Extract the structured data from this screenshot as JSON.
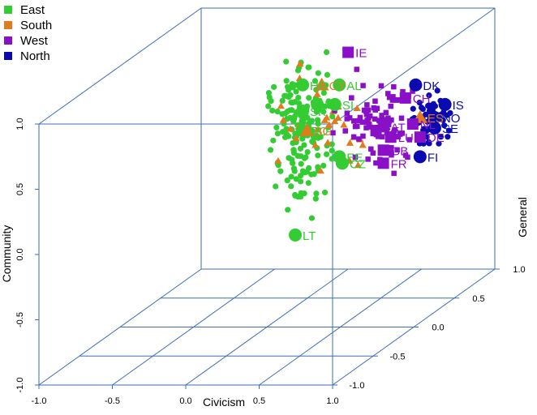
{
  "chart_data": {
    "type": "scatter3d",
    "title": "",
    "axes": {
      "x": {
        "label": "Civicism",
        "range": [
          -1.0,
          1.0
        ],
        "ticks": [
          "-1.0",
          "-0.5",
          "0.0",
          "0.5",
          "1.0"
        ]
      },
      "y": {
        "label": "Community",
        "range": [
          -1.0,
          1.0
        ],
        "ticks": [
          "-1.0",
          "-0.5",
          "0.0",
          "0.5",
          "1.0"
        ]
      },
      "z": {
        "label": "General",
        "range": [
          -1.0,
          1.0
        ],
        "ticks": [
          "-1.0",
          "-0.5",
          "0.0",
          "0.5",
          "1.0"
        ]
      }
    },
    "legend": {
      "placement": "top-left",
      "items": [
        {
          "name": "East",
          "color": "#33cc33",
          "marker": "square"
        },
        {
          "name": "South",
          "color": "#e07b20",
          "marker": "square"
        },
        {
          "name": "West",
          "color": "#8a10c8",
          "marker": "square"
        },
        {
          "name": "North",
          "color": "#0a0ab0",
          "marker": "square"
        }
      ]
    },
    "group_colors": {
      "East": "#33cc33",
      "South": "#e07b20",
      "West": "#8a10c8",
      "North": "#0a0ab0"
    },
    "group_markers": {
      "East": "circle",
      "South": "triangle",
      "West": "square",
      "North": "circle"
    },
    "labeled_countries": [
      {
        "label": "IE",
        "group": "West",
        "x": 0.36,
        "y": 0.95,
        "z": 0.55
      },
      {
        "label": "DK",
        "group": "North",
        "x": 0.82,
        "y": 0.7,
        "z": 0.25
      },
      {
        "label": "IS",
        "group": "North",
        "x": 1.02,
        "y": 0.55,
        "z": 0.0
      },
      {
        "label": "CH",
        "group": "West",
        "x": 0.75,
        "y": 0.6,
        "z": 0.2
      },
      {
        "label": "NO",
        "group": "North",
        "x": 0.95,
        "y": 0.45,
        "z": 0.0
      },
      {
        "label": "SE",
        "group": "North",
        "x": 0.95,
        "y": 0.37,
        "z": 0.0
      },
      {
        "label": "ES",
        "group": "South",
        "x": 0.85,
        "y": 0.45,
        "z": 0.25
      },
      {
        "label": "NL",
        "group": "West",
        "x": 0.8,
        "y": 0.4,
        "z": 0.2
      },
      {
        "label": "DE",
        "group": "West",
        "x": 0.85,
        "y": 0.3,
        "z": 0.2
      },
      {
        "label": "FI",
        "group": "North",
        "x": 0.85,
        "y": 0.15,
        "z": 0.2
      },
      {
        "label": "BE",
        "group": "West",
        "x": 0.55,
        "y": 0.35,
        "z": 0.45
      },
      {
        "label": "AT",
        "group": "West",
        "x": 0.6,
        "y": 0.38,
        "z": 0.5
      },
      {
        "label": "LU",
        "group": "West",
        "x": 0.65,
        "y": 0.3,
        "z": 0.5
      },
      {
        "label": "GB",
        "group": "West",
        "x": 0.6,
        "y": 0.2,
        "z": 0.5
      },
      {
        "label": "FR",
        "group": "West",
        "x": 0.6,
        "y": 0.1,
        "z": 0.5
      },
      {
        "label": "HR",
        "group": "East",
        "x": 0.05,
        "y": 0.7,
        "z": 0.4
      },
      {
        "label": "CY",
        "group": "South",
        "x": 0.18,
        "y": 0.7,
        "z": 0.4
      },
      {
        "label": "AL",
        "group": "East",
        "x": 0.3,
        "y": 0.7,
        "z": 0.4
      },
      {
        "label": "SK",
        "group": "East",
        "x": 0.05,
        "y": 0.5,
        "z": 0.4
      },
      {
        "label": "PL",
        "group": "East",
        "x": 0.15,
        "y": 0.55,
        "z": 0.4
      },
      {
        "label": "SI",
        "group": "East",
        "x": 0.27,
        "y": 0.55,
        "z": 0.4
      },
      {
        "label": "RO",
        "group": "East",
        "x": 0.05,
        "y": 0.35,
        "z": 0.4
      },
      {
        "label": "BG",
        "group": "South",
        "x": 0.08,
        "y": 0.35,
        "z": 0.4
      },
      {
        "label": "EE",
        "group": "East",
        "x": 0.3,
        "y": 0.15,
        "z": 0.4
      },
      {
        "label": "CZ",
        "group": "East",
        "x": 0.32,
        "y": 0.1,
        "z": 0.4
      },
      {
        "label": "LT",
        "group": "East",
        "x": 0.0,
        "y": -0.45,
        "z": 0.4
      }
    ],
    "point_counts_estimated": {
      "East": 170,
      "South": 30,
      "West": 90,
      "North": 60
    }
  }
}
